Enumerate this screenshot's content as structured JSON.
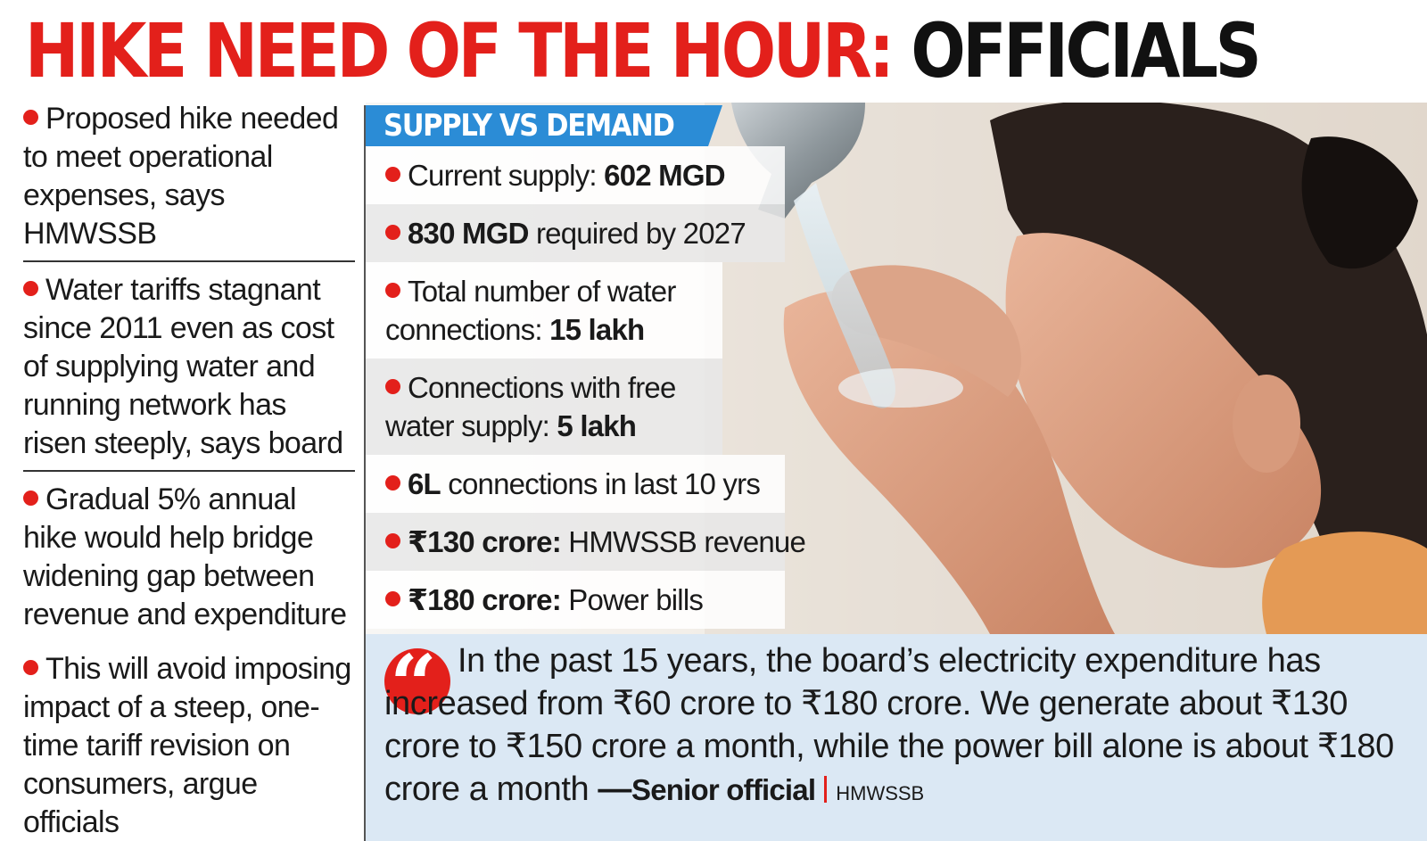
{
  "headline": {
    "part_red": "HIKE NEED OF THE HOUR:",
    "part_black": "OFFICIALS",
    "colors": {
      "red": "#e3201b",
      "black": "#111111"
    }
  },
  "left_points": [
    "Proposed hike needed to meet operational expenses, says HMWSSB",
    "Water tariffs stagnant since 2011 even as cost of supplying water and running network has risen steeply, says board",
    "Gradual 5% annual hike would help bridge widening gap between revenue and expenditure",
    "This will avoid imposing impact of a steep, one-time tariff revision on consumers, argue officials"
  ],
  "supply_demand": {
    "header": "SUPPLY VS DEMAND",
    "header_color": "#2b8cd6",
    "items": [
      {
        "pre": "Current supply: ",
        "bold": "602 MGD",
        "post": ""
      },
      {
        "pre": "",
        "bold": "830 MGD",
        "post": " required by 2027"
      },
      {
        "pre": "Total number of water connections: ",
        "bold": "15 lakh",
        "post": ""
      },
      {
        "pre": "Connections with free water supply: ",
        "bold": "5 lakh",
        "post": ""
      },
      {
        "pre": "",
        "bold": "6L",
        "post": " connections in last 10 yrs"
      },
      {
        "pre": "",
        "bold": "₹130 crore:",
        "post": " HMWSSB revenue"
      },
      {
        "pre": "",
        "bold": "₹180 crore:",
        "post": " Power bills"
      }
    ]
  },
  "quote": {
    "icon": "quote-icon",
    "icon_glyph": "“",
    "text": "In the past 15 years, the board’s electricity expenditure has increased from ₹60 crore to ₹180 crore. We generate about ₹130 crore to ₹150 crore a month, while the power bill alone is about ₹180 crore a month",
    "dash": " —",
    "source": "Senior official",
    "organization": "HMWSSB",
    "background": "#dbe8f4"
  }
}
